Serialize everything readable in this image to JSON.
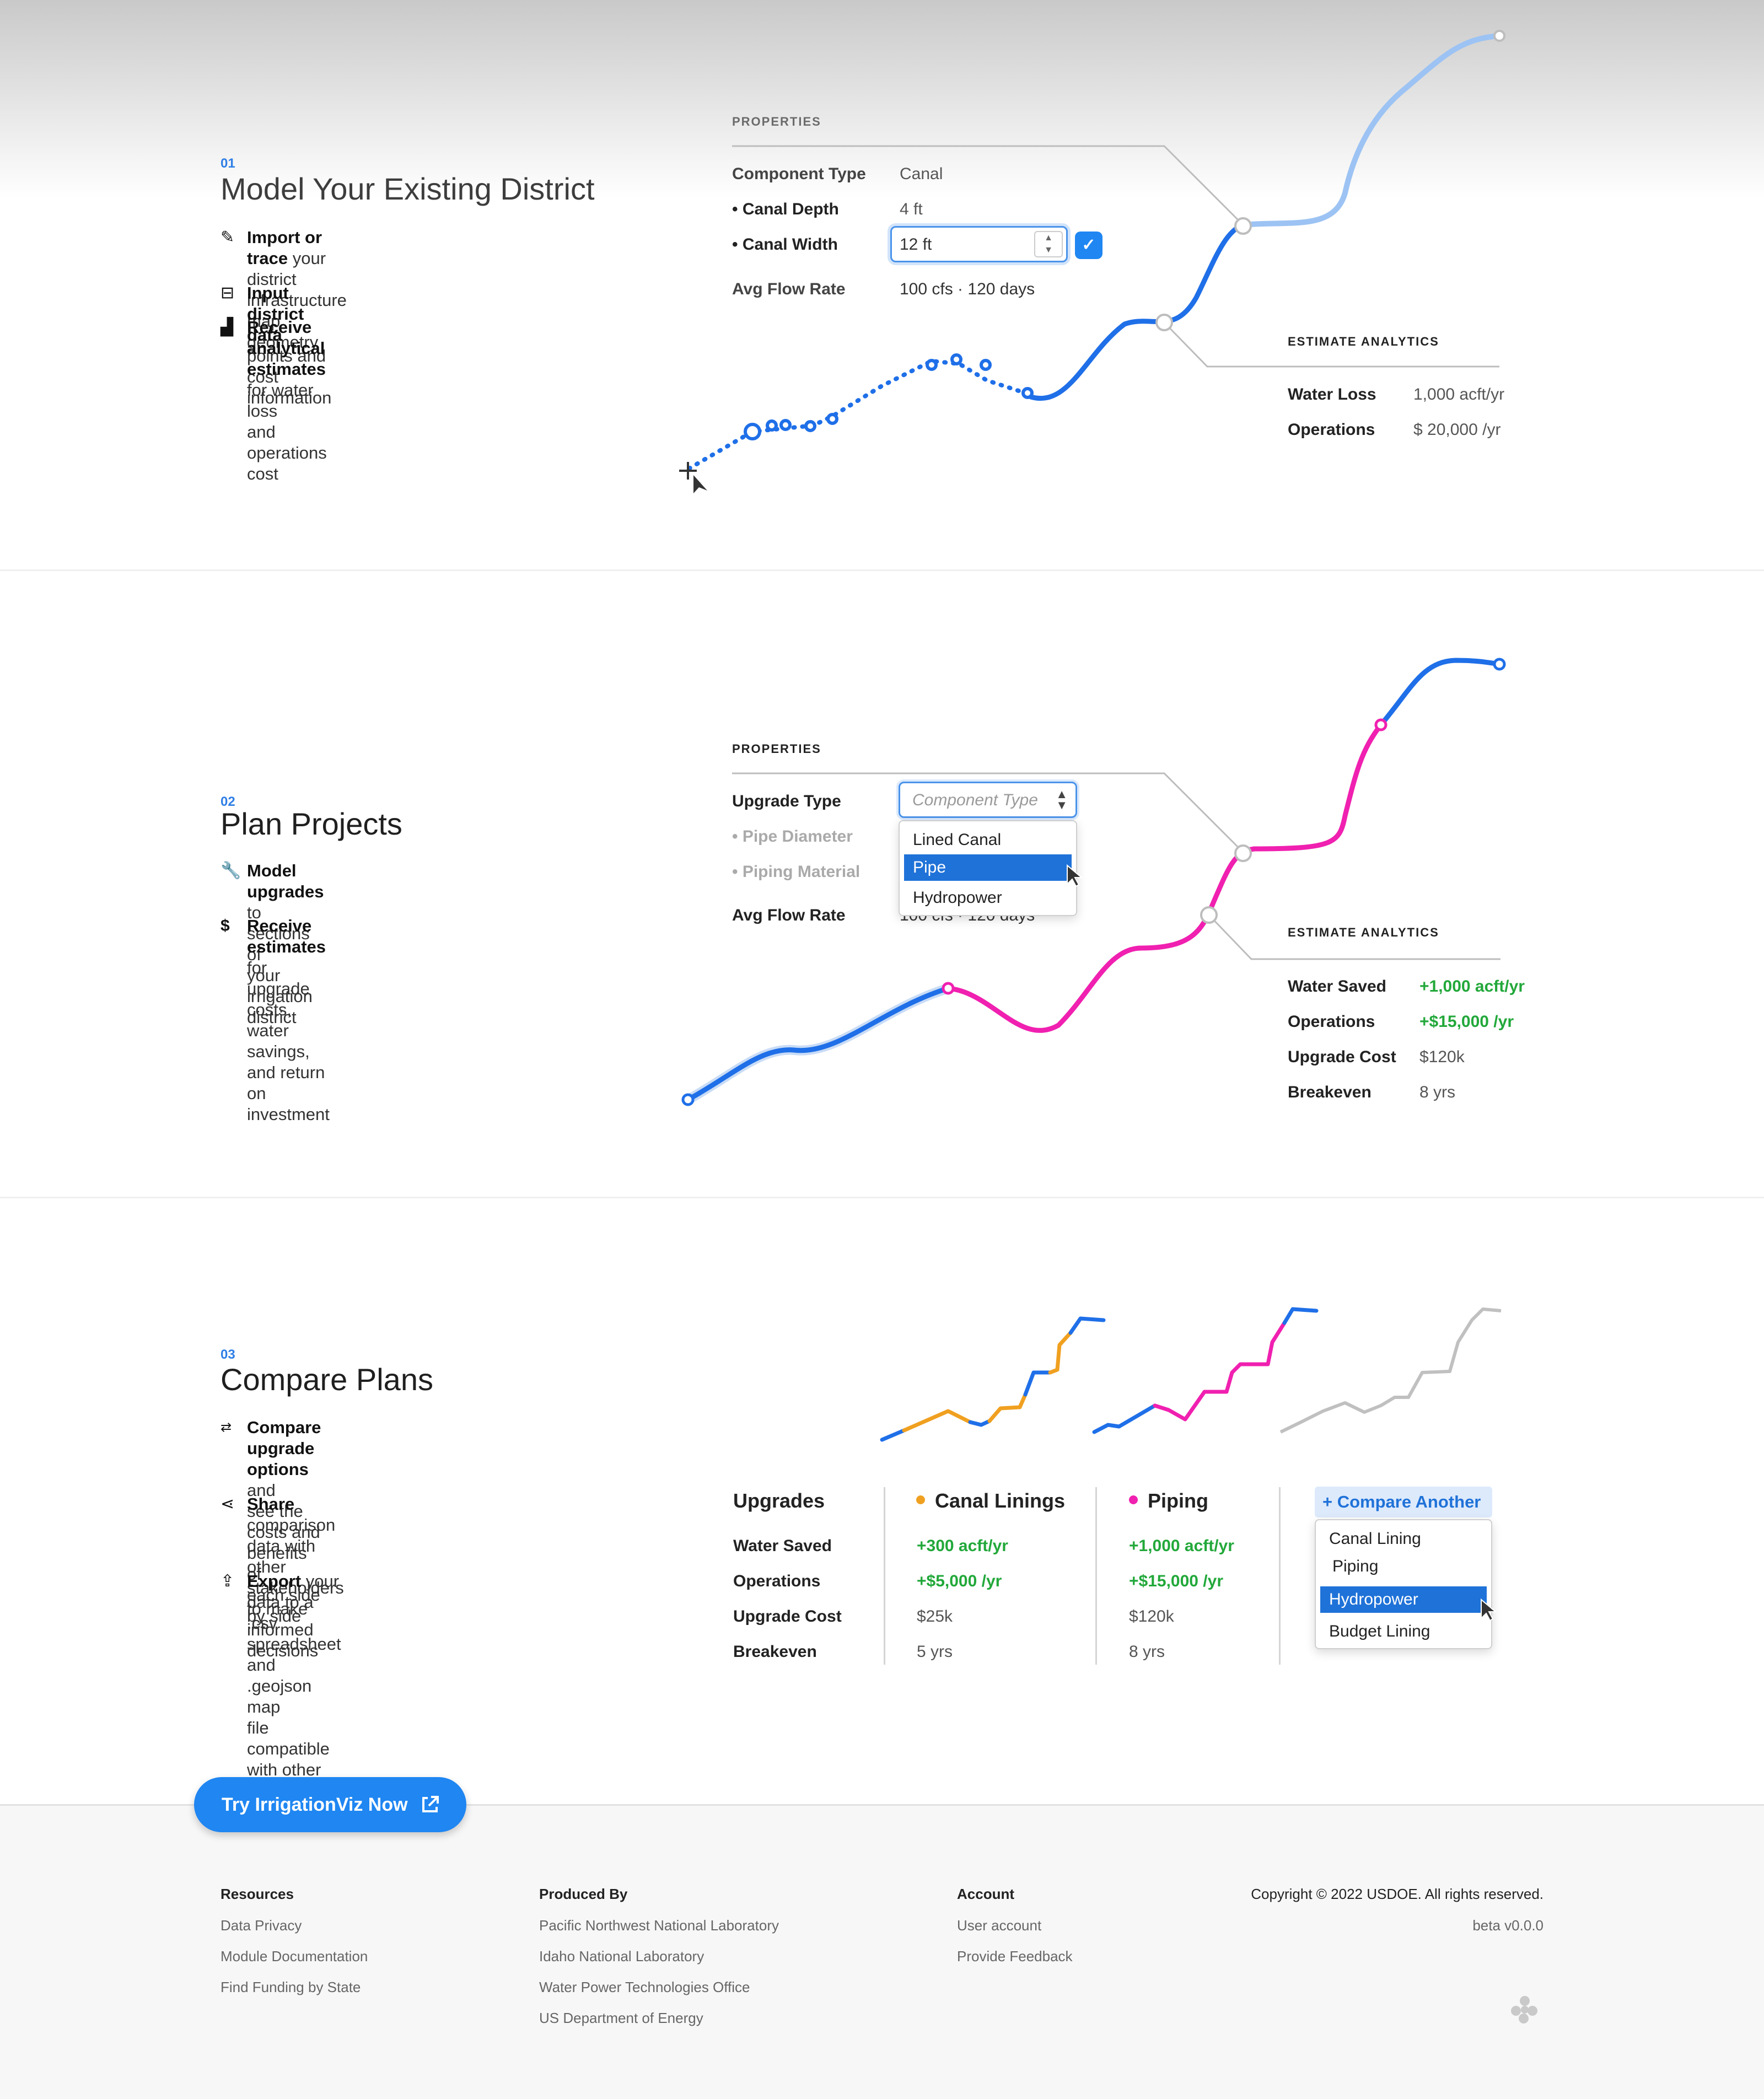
{
  "sections": [
    {
      "number": "01",
      "title": "Model Your Existing District",
      "features": [
        {
          "icon": "pencil-icon",
          "bold": "Import or trace",
          "rest1": " your district infrastructure",
          "rest2": "map geometry"
        },
        {
          "icon": "database-input-icon",
          "bold": "Input district data",
          "rest1": " points and cost information",
          "rest2": ""
        },
        {
          "icon": "bar-chart-icon",
          "bold": "Receive analytical estimates",
          "rest1": " for water loss",
          "rest2": "and operations cost"
        }
      ],
      "properties": {
        "heading": "PROPERTIES",
        "rows": [
          {
            "label": "Component Type",
            "value": "Canal"
          },
          {
            "label": "• Canal Depth",
            "value": "4 ft"
          },
          {
            "label": "• Canal Width",
            "value": "12 ft"
          },
          {
            "label": "Avg Flow Rate",
            "value": "100 cfs · 120 days"
          }
        ]
      },
      "analytics": {
        "heading": "ESTIMATE ANALYTICS",
        "rows": [
          {
            "label": "Water Loss",
            "value": "1,000 acft/yr"
          },
          {
            "label": "Operations",
            "value": "$ 20,000 /yr"
          }
        ]
      }
    },
    {
      "number": "02",
      "title": "Plan Projects",
      "features": [
        {
          "icon": "wrench-icon",
          "bold": "Model upgrades",
          "rest1": " to sections of",
          "rest2": "your irrigation district"
        },
        {
          "icon": "dollar-icon",
          "bold": "Receive estimates",
          "rest1": " for upgrade",
          "rest2": "costs, water savings, and return",
          "rest3": "on investment"
        }
      ],
      "properties": {
        "heading": "PROPERTIES",
        "rows": [
          {
            "label": "Upgrade Type"
          },
          {
            "label": "• Pipe Diameter"
          },
          {
            "label": "• Piping Material"
          },
          {
            "label": "Avg Flow Rate",
            "value": "100 cfs · 120 days"
          }
        ],
        "select_placeholder": "Component Type",
        "options": [
          "Lined Canal",
          "Pipe",
          "Hydropower"
        ],
        "selected_option": "Pipe"
      },
      "analytics": {
        "heading": "ESTIMATE ANALYTICS",
        "rows": [
          {
            "label": "Water Saved",
            "value": "+1,000 acft/yr"
          },
          {
            "label": "Operations",
            "value": "+$15,000 /yr"
          },
          {
            "label": "Upgrade Cost",
            "value": "$120k"
          },
          {
            "label": "Breakeven",
            "value": "8 yrs"
          }
        ]
      }
    },
    {
      "number": "03",
      "title": "Compare Plans",
      "features": [
        {
          "icon": "compare-arrows-icon",
          "bold": "Compare upgrade options",
          "rest1": " and",
          "rest2": "see the costs and benefits of",
          "rest3": "each side by side"
        },
        {
          "icon": "share-icon",
          "bold": "Share",
          "rest1": " comparison data with",
          "rest2": "other stakeholders to make",
          "rest3": "informed decisions"
        },
        {
          "icon": "upload-icon",
          "bold": "Export",
          "rest1": " your data to a .csv",
          "rest2": "spreadsheet and .geojson map",
          "rest3": "file compatible with other tools"
        }
      ],
      "comparison": {
        "row_header": "Upgrades",
        "row_labels": [
          "Water Saved",
          "Operations",
          "Upgrade Cost",
          "Breakeven"
        ],
        "columns": [
          {
            "name": "Canal Linings",
            "color": "#f0a020",
            "values": [
              "+300 acft/yr",
              "+$5,000 /yr",
              "$25k",
              "5 yrs"
            ]
          },
          {
            "name": "Piping",
            "color": "#f020b0",
            "values": [
              "+1,000 acft/yr",
              "+$15,000 /yr",
              "$120k",
              "8 yrs"
            ]
          }
        ],
        "compare_button": "+ Compare Another",
        "compare_options": [
          "Canal Lining",
          "Piping",
          "Hydropower",
          "Budget Lining"
        ],
        "selected_compare": "Hydropower"
      }
    }
  ],
  "cta": {
    "label": "Try IrrigationViz Now"
  },
  "footer": {
    "resources": {
      "heading": "Resources",
      "links": [
        "Data Privacy",
        "Module Documentation",
        "Find Funding by State"
      ]
    },
    "produced_by": {
      "heading": "Produced By",
      "links": [
        "Pacific Northwest National Laboratory",
        "Idaho National Laboratory",
        "Water Power Technologies Office",
        "US Department of Energy"
      ]
    },
    "account": {
      "heading": "Account",
      "links": [
        "User account",
        "Provide Feedback"
      ]
    },
    "copyright": "Copyright © 2022 USDOE. All rights reserved.",
    "version": "beta v0.0.0"
  },
  "colors": {
    "blue": "#1f6fe8",
    "magenta": "#f020b0",
    "orange": "#f0a020",
    "green": "#22a83a",
    "grey": "#c0c0c0"
  }
}
